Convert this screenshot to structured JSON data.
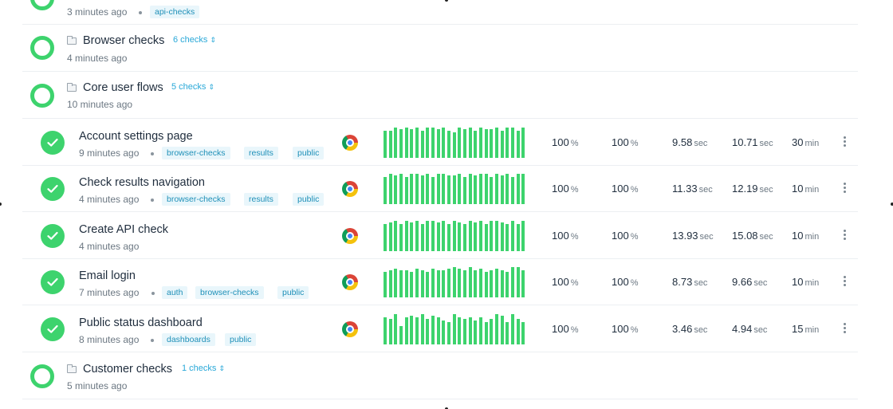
{
  "groups": [
    {
      "name": "",
      "count": "",
      "time": "3 minutes ago",
      "tags": [
        "api-checks"
      ]
    },
    {
      "name": "Browser checks",
      "count": "6 checks",
      "time": "4 minutes ago",
      "tags": []
    },
    {
      "name": "Core user flows",
      "count": "5 checks",
      "time": "10 minutes ago",
      "tags": []
    },
    {
      "name": "Customer checks",
      "count": "1 checks",
      "time": "5 minutes ago",
      "tags": []
    }
  ],
  "checks": [
    {
      "name": "Account settings page",
      "time": "9 minutes ago",
      "tags": [
        "browser-checks",
        "results",
        "public"
      ],
      "success_24h": "100",
      "success_7d": "100",
      "avg": "9.58",
      "p95": "10.71",
      "frequency": "30",
      "freq_unit": "min",
      "history": [
        0.9,
        0.9,
        1,
        0.95,
        1,
        0.95,
        1,
        0.9,
        1,
        1,
        0.95,
        1,
        0.9,
        0.85,
        1,
        0.95,
        1,
        0.9,
        1,
        0.95,
        0.95,
        1,
        0.9,
        1,
        1,
        0.9,
        1
      ]
    },
    {
      "name": "Check results navigation",
      "time": "4 minutes ago",
      "tags": [
        "browser-checks",
        "results",
        "public"
      ],
      "success_24h": "100",
      "success_7d": "100",
      "avg": "11.33",
      "p95": "12.19",
      "frequency": "10",
      "freq_unit": "min",
      "history": [
        0.9,
        1,
        0.95,
        1,
        0.9,
        1,
        1,
        0.95,
        1,
        0.9,
        1,
        1,
        0.95,
        0.95,
        1,
        0.9,
        1,
        0.95,
        1,
        1,
        0.9,
        1,
        0.95,
        1,
        0.9,
        1,
        1
      ]
    },
    {
      "name": "Create API check",
      "time": "4 minutes ago",
      "tags": [],
      "success_24h": "100",
      "success_7d": "100",
      "avg": "13.93",
      "p95": "15.08",
      "frequency": "10",
      "freq_unit": "min",
      "history": [
        0.9,
        0.95,
        1,
        0.9,
        1,
        0.95,
        1,
        0.9,
        1,
        1,
        0.95,
        1,
        0.9,
        1,
        0.95,
        0.9,
        1,
        0.95,
        1,
        0.9,
        1,
        1,
        0.95,
        0.9,
        1,
        0.9,
        1
      ]
    },
    {
      "name": "Email login",
      "time": "7 minutes ago",
      "tags": [
        "auth",
        "browser-checks",
        "public"
      ],
      "success_24h": "100",
      "success_7d": "100",
      "avg": "8.73",
      "p95": "9.66",
      "frequency": "10",
      "freq_unit": "min",
      "history": [
        0.85,
        0.9,
        0.95,
        0.9,
        0.9,
        0.85,
        0.95,
        0.9,
        0.85,
        0.95,
        0.9,
        0.9,
        0.95,
        1,
        0.95,
        0.9,
        1,
        0.9,
        0.95,
        0.85,
        0.9,
        0.95,
        0.9,
        0.85,
        1,
        1,
        0.9
      ]
    },
    {
      "name": "Public status dashboard",
      "time": "8 minutes ago",
      "tags": [
        "dashboards",
        "public"
      ],
      "success_24h": "100",
      "success_7d": "100",
      "avg": "3.46",
      "p95": "4.94",
      "frequency": "15",
      "freq_unit": "min",
      "history": [
        0.9,
        0.85,
        1,
        0.6,
        0.9,
        0.95,
        0.9,
        1,
        0.85,
        0.95,
        0.9,
        0.8,
        0.75,
        1,
        0.9,
        0.85,
        0.9,
        0.8,
        0.9,
        0.75,
        0.85,
        1,
        0.95,
        0.75,
        1,
        0.85,
        0.75
      ]
    }
  ],
  "units": {
    "percent": "%",
    "seconds": "sec"
  },
  "colors": {
    "success": "#3dd36d",
    "accent": "#29a8d8"
  }
}
